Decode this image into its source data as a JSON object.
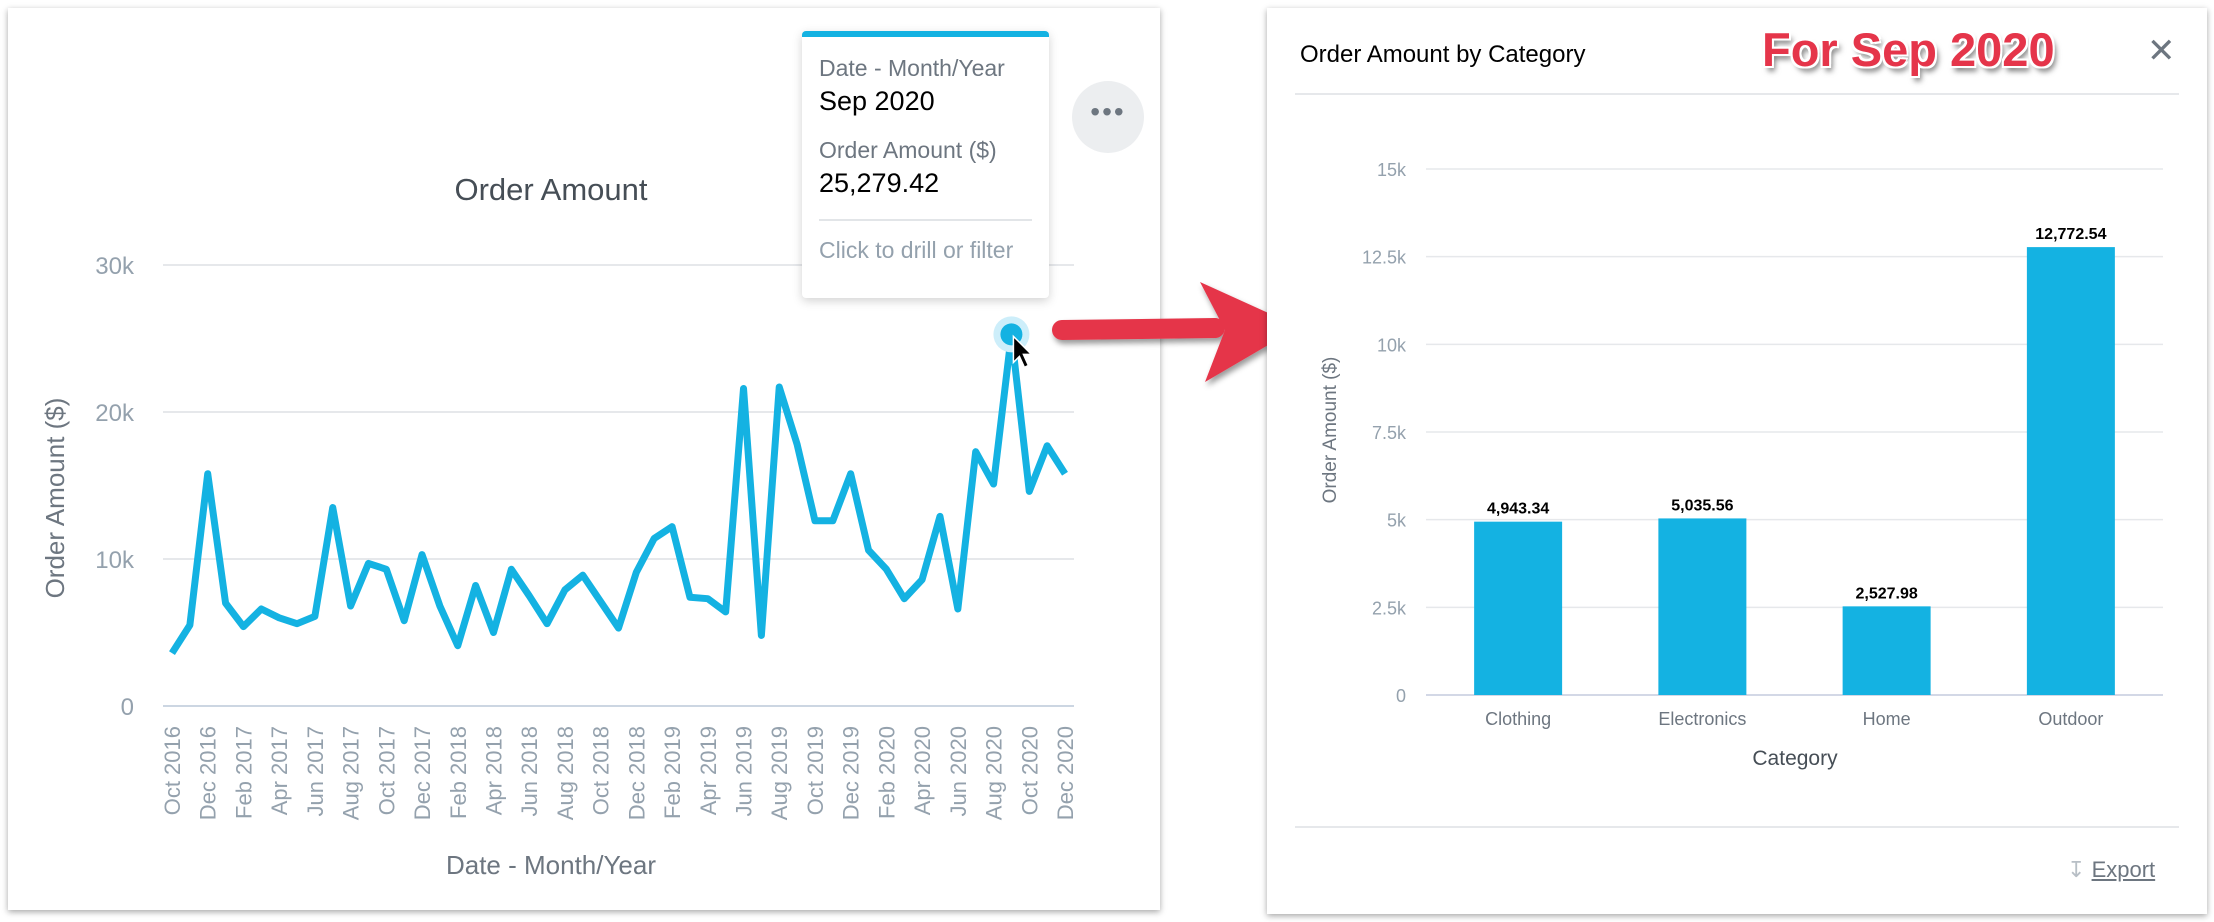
{
  "left_chart": {
    "chart_data": {
      "type": "line",
      "title": "Order Amount",
      "xlabel": "Date - Month/Year",
      "ylabel": "Order Amount ($)",
      "ylim": [
        0,
        30000
      ],
      "y_ticks": [
        "0",
        "10k",
        "20k",
        "30k"
      ],
      "grid": true,
      "color": "#14b2e2",
      "x": [
        "Oct 2016",
        "Nov 2016",
        "Dec 2016",
        "Jan 2017",
        "Feb 2017",
        "Mar 2017",
        "Apr 2017",
        "May 2017",
        "Jun 2017",
        "Jul 2017",
        "Aug 2017",
        "Sep 2017",
        "Oct 2017",
        "Nov 2017",
        "Dec 2017",
        "Jan 2018",
        "Feb 2018",
        "Mar 2018",
        "Apr 2018",
        "May 2018",
        "Jun 2018",
        "Jul 2018",
        "Aug 2018",
        "Sep 2018",
        "Oct 2018",
        "Nov 2018",
        "Dec 2018",
        "Jan 2019",
        "Feb 2019",
        "Mar 2019",
        "Apr 2019",
        "May 2019",
        "Jun 2019",
        "Jul 2019",
        "Aug 2019",
        "Sep 2019",
        "Oct 2019",
        "Nov 2019",
        "Dec 2019",
        "Jan 2020",
        "Feb 2020",
        "Mar 2020",
        "Apr 2020",
        "May 2020",
        "Jun 2020",
        "Jul 2020",
        "Aug 2020",
        "Sep 2020",
        "Oct 2020",
        "Nov 2020",
        "Dec 2020"
      ],
      "x_tick_labels": [
        "Oct 2016",
        "Dec 2016",
        "Feb 2017",
        "Apr 2017",
        "Jun 2017",
        "Aug 2017",
        "Oct 2017",
        "Dec 2017",
        "Feb 2018",
        "Apr 2018",
        "Jun 2018",
        "Aug 2018",
        "Oct 2018",
        "Dec 2018",
        "Feb 2019",
        "Apr 2019",
        "Jun 2019",
        "Aug 2019",
        "Oct 2019",
        "Dec 2019",
        "Feb 2020",
        "Apr 2020",
        "Jun 2020",
        "Aug 2020",
        "Oct 2020",
        "Dec 2020"
      ],
      "values": [
        3600,
        5500,
        15800,
        7000,
        5400,
        6600,
        6000,
        5600,
        6100,
        13500,
        6800,
        9700,
        9300,
        5800,
        10300,
        6800,
        4100,
        8200,
        5000,
        9300,
        7500,
        5600,
        7900,
        8900,
        7100,
        5300,
        9100,
        11400,
        12200,
        7400,
        7300,
        6400,
        21600,
        4800,
        21700,
        17800,
        12600,
        12600,
        15800,
        10600,
        9300,
        7300,
        8600,
        12900,
        6600,
        17300,
        15100,
        25279.42,
        14600,
        17700,
        15800
      ],
      "highlighted_index": 47
    },
    "tooltip": {
      "dim_label": "Date - Month/Year",
      "dim_value": "Sep 2020",
      "measure_label": "Order Amount ($)",
      "measure_value": "25,279.42",
      "hint": "Click to drill or filter"
    },
    "more_button": "•••"
  },
  "annotation": {
    "arrow_color": "#e5354a",
    "badge": "For Sep 2020"
  },
  "dialog": {
    "title": "Order Amount by Category",
    "close": "✕",
    "export_label": "Export",
    "export_icon": "download-icon",
    "chart_data": {
      "type": "bar",
      "categories": [
        "Clothing",
        "Electronics",
        "Home",
        "Outdoor"
      ],
      "values": [
        4943.34,
        5035.56,
        2527.98,
        12772.54
      ],
      "data_labels": [
        "4,943.34",
        "5,035.56",
        "2,527.98",
        "12,772.54"
      ],
      "xlabel": "Category",
      "ylabel": "Order Amount ($)",
      "ylim": [
        0,
        15000
      ],
      "y_ticks": [
        "0",
        "2.5k",
        "5k",
        "7.5k",
        "10k",
        "12.5k",
        "15k"
      ],
      "grid": true,
      "color": "#14b2e2"
    }
  }
}
